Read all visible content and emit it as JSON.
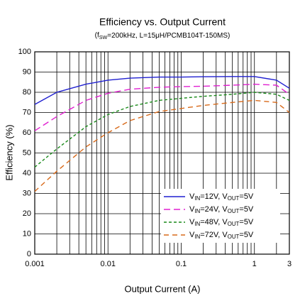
{
  "chart_data": {
    "type": "line",
    "title": "Efficiency vs. Output Current",
    "subtitle": "(fSW=200kHz, L=15μH/PCMB104T-150MS)",
    "x_label": "Output Current (A)",
    "y_label": "Efficiency (%)",
    "x_scale": "log",
    "xlim": [
      0.001,
      3
    ],
    "xticks": [
      0.001,
      0.01,
      0.1,
      1,
      3
    ],
    "xminorticks": [
      0.002,
      0.003,
      0.004,
      0.005,
      0.006,
      0.007,
      0.008,
      0.009,
      0.02,
      0.03,
      0.04,
      0.05,
      0.06,
      0.07,
      0.08,
      0.09,
      0.2,
      0.3,
      0.4,
      0.5,
      0.6,
      0.7,
      0.8,
      0.9,
      2
    ],
    "ylim": [
      0,
      100
    ],
    "yticks": [
      0,
      10,
      20,
      30,
      40,
      50,
      60,
      70,
      80,
      90,
      100
    ],
    "grid": true,
    "legend": "lower right",
    "x": [
      0.001,
      0.002,
      0.005,
      0.01,
      0.02,
      0.05,
      0.1,
      0.2,
      0.5,
      1,
      2,
      3
    ],
    "series": [
      {
        "name": "VIN=12V, VOUT=5V",
        "color": "#1f1fd0",
        "dash": "none",
        "values": [
          74,
          80,
          84,
          86,
          87,
          87.5,
          87.5,
          87.7,
          87.8,
          87.8,
          86,
          82
        ]
      },
      {
        "name": "VIN=24V, VOUT=5V",
        "color": "#e020d0",
        "dash": "9 5",
        "values": [
          61,
          68,
          76,
          79.5,
          81.5,
          82.5,
          82.8,
          83,
          83.5,
          84,
          83.5,
          79
        ]
      },
      {
        "name": "VIN=48V, VOUT=5V",
        "color": "#1a8a1a",
        "dash": "4 3",
        "values": [
          43,
          52,
          63,
          69,
          73,
          76,
          77,
          78,
          79,
          80,
          79,
          76
        ]
      },
      {
        "name": "VIN=72V, VOUT=5V",
        "color": "#d86a1a",
        "dash": "7 5",
        "values": [
          31,
          41,
          53,
          60,
          66,
          70.5,
          72,
          73.5,
          75,
          76,
          75,
          70
        ]
      }
    ]
  }
}
